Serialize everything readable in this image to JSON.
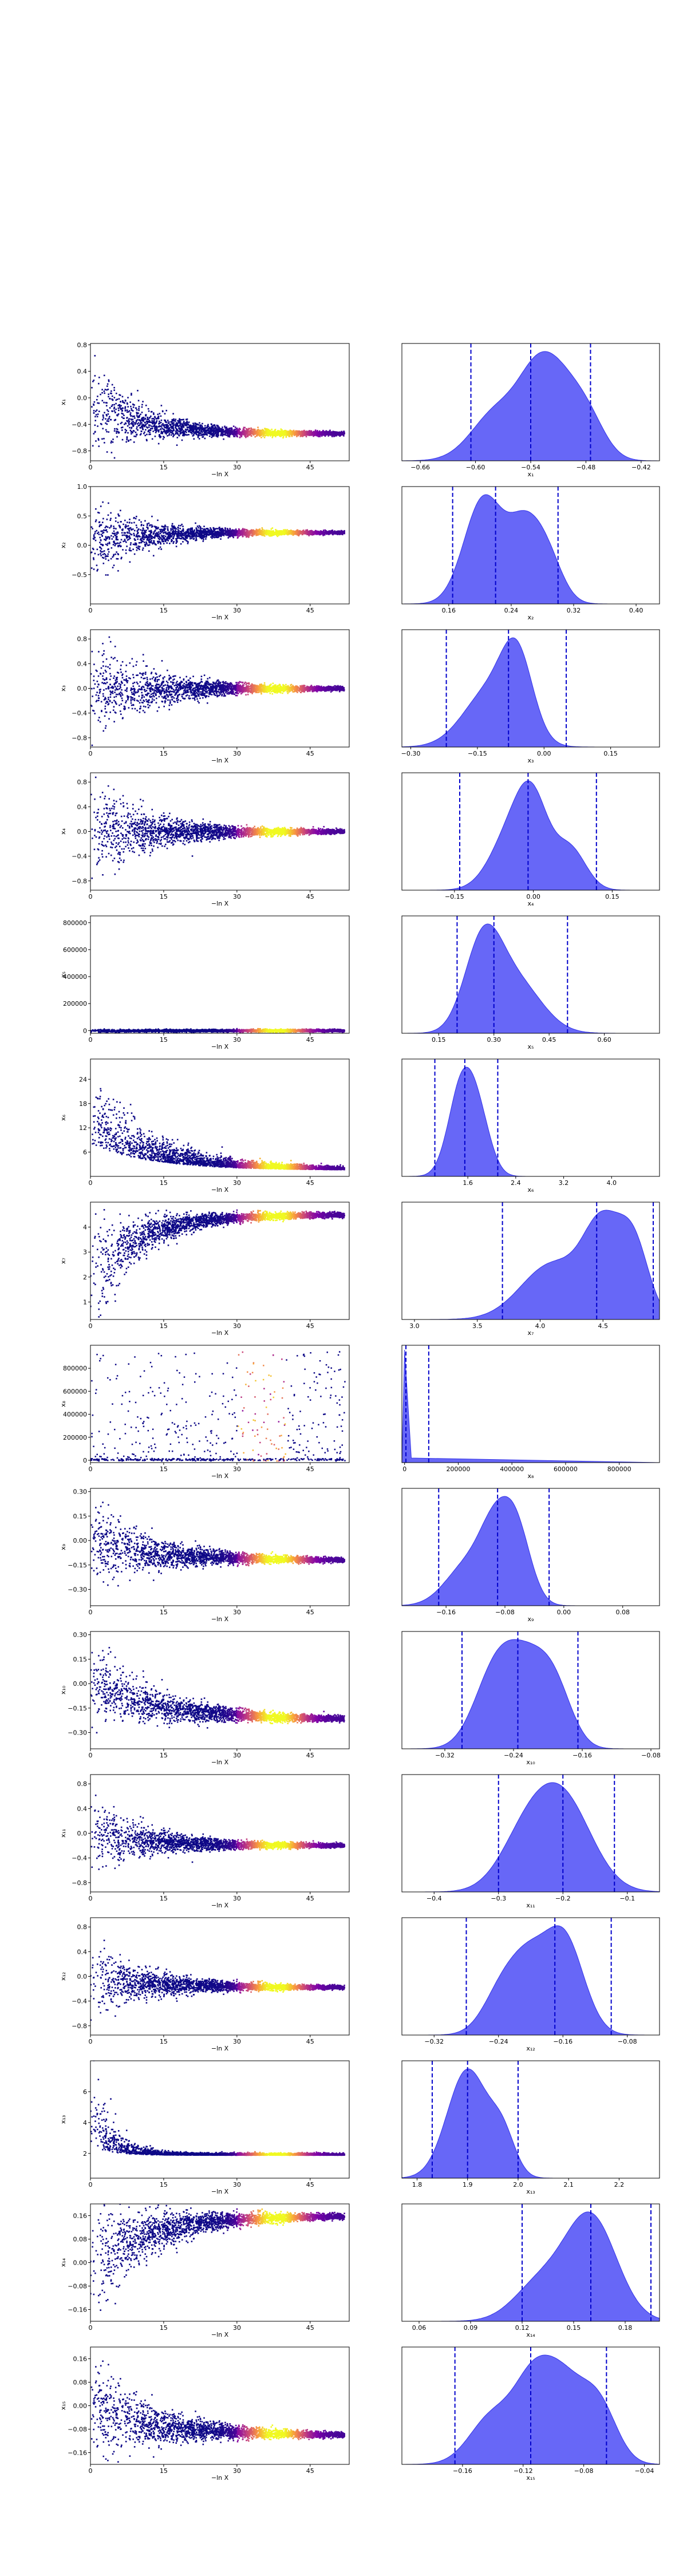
{
  "chart_data": [
    {
      "index": 1,
      "type": "scatter",
      "density_colored": true,
      "xlabel": "−ln X",
      "ylabel": "x₁",
      "xlim": [
        0,
        53
      ],
      "ylim": [
        -0.95,
        0.82
      ],
      "xticks": [
        0,
        15,
        30,
        45
      ],
      "yticks": [
        0.8,
        0.4,
        0.0,
        -0.4,
        -0.8
      ],
      "ytick_labels": [
        "0.8",
        "0.4",
        "0.0",
        "−0.4",
        "−0.8"
      ],
      "trend": {
        "y_end": -0.54,
        "spread0": 0.8,
        "y0": -0.05,
        "decay": 0.1
      }
    },
    {
      "index": 1,
      "type": "area",
      "xlabel": "x₁",
      "xlim": [
        -0.68,
        -0.4
      ],
      "xticks": [
        -0.66,
        -0.6,
        -0.54,
        -0.48,
        -0.42
      ],
      "xtick_labels": [
        "−0.66",
        "−0.60",
        "−0.54",
        "−0.48",
        "−0.42"
      ],
      "quantiles": [
        -0.605,
        -0.54,
        -0.475
      ],
      "peaks": [
        [
          -0.575,
          0.028,
          0.85
        ],
        [
          -0.535,
          0.02,
          1.0
        ],
        [
          -0.51,
          0.02,
          0.95
        ],
        [
          -0.48,
          0.02,
          0.75
        ]
      ]
    },
    {
      "index": 2,
      "type": "scatter",
      "density_colored": true,
      "xlabel": "−ln X",
      "ylabel": "x₂",
      "xlim": [
        0,
        53
      ],
      "ylim": [
        -1.0,
        1.0
      ],
      "xticks": [
        0,
        15,
        30,
        45
      ],
      "yticks": [
        1.0,
        0.5,
        0.0,
        -0.5
      ],
      "ytick_labels": [
        "1.0",
        "0.5",
        "0.0",
        "−0.5"
      ],
      "trend": {
        "y_end": 0.22,
        "spread0": 0.8,
        "y0": 0.05,
        "decay": 0.1
      }
    },
    {
      "index": 2,
      "type": "area",
      "xlabel": "x₂",
      "xlim": [
        0.1,
        0.43
      ],
      "xticks": [
        0.16,
        0.24,
        0.32,
        0.4
      ],
      "xtick_labels": [
        "0.16",
        "0.24",
        "0.32",
        "0.40"
      ],
      "quantiles": [
        0.165,
        0.22,
        0.3
      ],
      "peaks": [
        [
          0.205,
          0.025,
          1.0
        ],
        [
          0.255,
          0.02,
          0.6
        ],
        [
          0.285,
          0.02,
          0.45
        ]
      ]
    },
    {
      "index": 3,
      "type": "scatter",
      "density_colored": true,
      "xlabel": "−ln X",
      "ylabel": "x₃",
      "xlim": [
        0,
        53
      ],
      "ylim": [
        -0.95,
        0.95
      ],
      "xticks": [
        0,
        15,
        30,
        45
      ],
      "yticks": [
        0.8,
        0.4,
        0.0,
        -0.4,
        -0.8
      ],
      "ytick_labels": [
        "0.8",
        "0.4",
        "0.0",
        "−0.4",
        "−0.8"
      ],
      "trend": {
        "y_end": 0.0,
        "spread0": 0.85,
        "y0": -0.05,
        "decay": 0.08
      }
    },
    {
      "index": 3,
      "type": "area",
      "xlabel": "x₃",
      "xlim": [
        -0.32,
        0.26
      ],
      "xticks": [
        -0.3,
        -0.15,
        0.0,
        0.15
      ],
      "xtick_labels": [
        "−0.30",
        "−0.15",
        "0.00",
        "0.15"
      ],
      "quantiles": [
        -0.22,
        -0.08,
        0.05
      ],
      "peaks": [
        [
          -0.12,
          0.06,
          0.8
        ],
        [
          -0.06,
          0.035,
          1.0
        ]
      ]
    },
    {
      "index": 4,
      "type": "scatter",
      "density_colored": true,
      "xlabel": "−ln X",
      "ylabel": "x₄",
      "xlim": [
        0,
        53
      ],
      "ylim": [
        -0.95,
        0.95
      ],
      "xticks": [
        0,
        15,
        30,
        45
      ],
      "yticks": [
        0.8,
        0.4,
        0.0,
        -0.4,
        -0.8
      ],
      "ytick_labels": [
        "0.8",
        "0.4",
        "0.0",
        "−0.4",
        "−0.8"
      ],
      "trend": {
        "y_end": 0.0,
        "spread0": 0.85,
        "y0": 0.0,
        "decay": 0.08
      }
    },
    {
      "index": 4,
      "type": "area",
      "xlabel": "x₄",
      "xlim": [
        -0.25,
        0.24
      ],
      "xticks": [
        -0.15,
        0.0,
        0.15
      ],
      "xtick_labels": [
        "−0.15",
        "0.00",
        "0.15"
      ],
      "quantiles": [
        -0.14,
        -0.01,
        0.12
      ],
      "peaks": [
        [
          -0.04,
          0.04,
          0.85
        ],
        [
          0.0,
          0.03,
          1.0
        ],
        [
          0.07,
          0.03,
          0.6
        ]
      ]
    },
    {
      "index": 5,
      "type": "scatter",
      "density_colored": true,
      "xlabel": "−ln X",
      "ylabel": "x₅",
      "xlim": [
        0,
        53
      ],
      "ylim": [
        -20000,
        850000
      ],
      "xticks": [
        0,
        15,
        30,
        45
      ],
      "yticks": [
        800000,
        600000,
        400000,
        200000,
        0
      ],
      "ytick_labels": [
        "800000",
        "600000",
        "400000",
        "200000",
        "0"
      ],
      "trend": {
        "y_end": 0,
        "spread0": 0,
        "y0": 0,
        "decay": 0.1
      }
    },
    {
      "index": 5,
      "type": "area",
      "xlabel": "x₅",
      "xlim": [
        0.05,
        0.75
      ],
      "xticks": [
        0.15,
        0.3,
        0.45,
        0.6
      ],
      "xtick_labels": [
        "0.15",
        "0.30",
        "0.45",
        "0.60"
      ],
      "quantiles": [
        0.2,
        0.3,
        0.5
      ],
      "peaks": [
        [
          0.27,
          0.05,
          1.0
        ],
        [
          0.36,
          0.07,
          0.6
        ]
      ]
    },
    {
      "index": 6,
      "type": "scatter",
      "density_colored": true,
      "xlabel": "−ln X",
      "ylabel": "x₆",
      "xlim": [
        0,
        53
      ],
      "ylim": [
        0,
        29
      ],
      "xticks": [
        0,
        15,
        30,
        45
      ],
      "yticks": [
        24,
        18,
        12,
        6
      ],
      "ytick_labels": [
        "24",
        "18",
        "12",
        "6"
      ],
      "trend": {
        "y_end": 1.6,
        "spread0": 14,
        "y0": 8,
        "decay": 0.08,
        "positive": true
      }
    },
    {
      "index": 6,
      "type": "area",
      "xlabel": "x₆",
      "xlim": [
        0.5,
        4.8
      ],
      "xticks": [
        1.6,
        2.4,
        3.2,
        4.0
      ],
      "xtick_labels": [
        "1.6",
        "2.4",
        "3.2",
        "4.0"
      ],
      "quantiles": [
        1.05,
        1.55,
        2.1
      ],
      "peaks": [
        [
          1.5,
          0.22,
          1.0
        ],
        [
          1.8,
          0.2,
          0.5
        ]
      ]
    },
    {
      "index": 7,
      "type": "scatter",
      "density_colored": true,
      "xlabel": "−ln X",
      "ylabel": "x₇",
      "xlim": [
        0,
        53
      ],
      "ylim": [
        0.3,
        5.0
      ],
      "xticks": [
        0,
        15,
        30,
        45
      ],
      "yticks": [
        4,
        3,
        2,
        1
      ],
      "ytick_labels": [
        "4",
        "3",
        "2",
        "1"
      ],
      "trend": {
        "y_end": 4.5,
        "spread0": 2.2,
        "y0": 2.0,
        "decay": 0.1,
        "cap": 4.7
      }
    },
    {
      "index": 7,
      "type": "area",
      "xlabel": "x₇",
      "xlim": [
        2.9,
        4.95
      ],
      "xticks": [
        3.0,
        3.5,
        4.0,
        4.5
      ],
      "xtick_labels": [
        "3.0",
        "3.5",
        "4.0",
        "4.5"
      ],
      "quantiles": [
        3.7,
        4.45,
        4.9
      ],
      "peaks": [
        [
          4.1,
          0.25,
          0.65
        ],
        [
          4.5,
          0.15,
          1.0
        ],
        [
          4.75,
          0.12,
          0.8
        ]
      ]
    },
    {
      "index": 8,
      "type": "scatter",
      "density_colored": true,
      "sparse": true,
      "xlabel": "−ln X",
      "ylabel": "x₈",
      "xlim": [
        0,
        53
      ],
      "ylim": [
        -20000,
        1000000
      ],
      "xticks": [
        0,
        15,
        30,
        45
      ],
      "yticks": [
        800000,
        600000,
        400000,
        200000,
        0
      ],
      "ytick_labels": [
        "800000",
        "600000",
        "400000",
        "200000",
        "0"
      ]
    },
    {
      "index": 8,
      "type": "area",
      "xlabel": "x₈",
      "xlim": [
        -10000,
        950000
      ],
      "xticks": [
        0,
        200000,
        400000,
        600000,
        800000
      ],
      "xtick_labels": [
        "0",
        "200000",
        "400000",
        "600000",
        "800000"
      ],
      "quantiles": [
        5000,
        90000
      ],
      "spike": true
    },
    {
      "index": 9,
      "type": "scatter",
      "density_colored": true,
      "xlabel": "−ln X",
      "ylabel": "x₉",
      "xlim": [
        0,
        53
      ],
      "ylim": [
        -0.4,
        0.32
      ],
      "xticks": [
        0,
        15,
        30,
        45
      ],
      "yticks": [
        0.3,
        0.15,
        0.0,
        -0.15,
        -0.3
      ],
      "ytick_labels": [
        "0.30",
        "0.15",
        "0.00",
        "−0.15",
        "−0.30"
      ],
      "trend": {
        "y_end": -0.12,
        "spread0": 0.3,
        "y0": 0.0,
        "decay": 0.08
      }
    },
    {
      "index": 9,
      "type": "area",
      "xlabel": "x₉",
      "xlim": [
        -0.22,
        0.13
      ],
      "xticks": [
        -0.16,
        -0.08,
        0.0,
        0.08
      ],
      "xtick_labels": [
        "−0.16",
        "−0.08",
        "0.00",
        "0.08"
      ],
      "quantiles": [
        -0.17,
        -0.09,
        -0.02
      ],
      "peaks": [
        [
          -0.13,
          0.03,
          0.55
        ],
        [
          -0.095,
          0.02,
          0.75
        ],
        [
          -0.065,
          0.02,
          1.0
        ]
      ]
    },
    {
      "index": 10,
      "type": "scatter",
      "density_colored": true,
      "xlabel": "−ln X",
      "ylabel": "x₁₀",
      "xlim": [
        0,
        53
      ],
      "ylim": [
        -0.4,
        0.32
      ],
      "xticks": [
        0,
        15,
        30,
        45
      ],
      "yticks": [
        0.3,
        0.15,
        0.0,
        -0.15,
        -0.3
      ],
      "ytick_labels": [
        "0.30",
        "0.15",
        "0.00",
        "−0.15",
        "−0.30"
      ],
      "trend": {
        "y_end": -0.22,
        "spread0": 0.25,
        "y0": 0.0,
        "decay": 0.07
      }
    },
    {
      "index": 10,
      "type": "area",
      "xlabel": "x₁₀",
      "xlim": [
        -0.37,
        -0.07
      ],
      "xticks": [
        -0.32,
        -0.24,
        -0.16,
        -0.08
      ],
      "xtick_labels": [
        "−0.32",
        "−0.24",
        "−0.16",
        "−0.08"
      ],
      "quantiles": [
        -0.3,
        -0.235,
        -0.165
      ],
      "peaks": [
        [
          -0.26,
          0.025,
          1.0
        ],
        [
          -0.22,
          0.025,
          0.9
        ],
        [
          -0.19,
          0.02,
          0.55
        ]
      ]
    },
    {
      "index": 11,
      "type": "scatter",
      "density_colored": true,
      "xlabel": "−ln X",
      "ylabel": "x₁₁",
      "xlim": [
        0,
        53
      ],
      "ylim": [
        -0.95,
        0.95
      ],
      "xticks": [
        0,
        15,
        30,
        45
      ],
      "yticks": [
        0.8,
        0.4,
        0.0,
        -0.4,
        -0.8
      ],
      "ytick_labels": [
        "0.8",
        "0.4",
        "0.0",
        "−0.4",
        "−0.8"
      ],
      "trend": {
        "y_end": -0.2,
        "spread0": 0.6,
        "y0": 0.0,
        "decay": 0.08
      }
    },
    {
      "index": 11,
      "type": "area",
      "xlabel": "x₁₁",
      "xlim": [
        -0.45,
        -0.05
      ],
      "xticks": [
        -0.4,
        -0.3,
        -0.2,
        -0.1
      ],
      "xtick_labels": [
        "−0.4",
        "−0.3",
        "−0.2",
        "−0.1"
      ],
      "quantiles": [
        -0.3,
        -0.2,
        -0.12
      ],
      "peaks": [
        [
          -0.2,
          0.045,
          1.0
        ],
        [
          -0.26,
          0.04,
          0.5
        ]
      ]
    },
    {
      "index": 12,
      "type": "scatter",
      "density_colored": true,
      "xlabel": "−ln X",
      "ylabel": "x₁₂",
      "xlim": [
        0,
        53
      ],
      "ylim": [
        -0.95,
        0.95
      ],
      "xticks": [
        0,
        15,
        30,
        45
      ],
      "yticks": [
        0.8,
        0.4,
        0.0,
        -0.4,
        -0.8
      ],
      "ytick_labels": [
        "0.8",
        "0.4",
        "0.0",
        "−0.4",
        "−0.8"
      ],
      "trend": {
        "y_end": -0.18,
        "spread0": 0.6,
        "y0": 0.0,
        "decay": 0.08
      }
    },
    {
      "index": 12,
      "type": "area",
      "xlabel": "x₁₂",
      "xlim": [
        -0.36,
        -0.04
      ],
      "xticks": [
        -0.32,
        -0.24,
        -0.16,
        -0.08
      ],
      "xtick_labels": [
        "−0.32",
        "−0.24",
        "−0.16",
        "−0.08"
      ],
      "quantiles": [
        -0.28,
        -0.17,
        -0.1
      ],
      "peaks": [
        [
          -0.23,
          0.025,
          0.55
        ],
        [
          -0.16,
          0.025,
          1.0
        ],
        [
          -0.2,
          0.02,
          0.4
        ]
      ]
    },
    {
      "index": 13,
      "type": "scatter",
      "density_colored": true,
      "xlabel": "−ln X",
      "ylabel": "x₁₃",
      "xlim": [
        0,
        53
      ],
      "ylim": [
        0.4,
        8.0
      ],
      "xticks": [
        0,
        15,
        30,
        45
      ],
      "yticks": [
        6,
        4,
        2
      ],
      "ytick_labels": [
        "6",
        "4",
        "2"
      ],
      "trend": {
        "y_end": 1.9,
        "spread0": 5,
        "y0": 2.5,
        "decay": 0.25,
        "positive": true
      }
    },
    {
      "index": 13,
      "type": "area",
      "xlabel": "x₁₃",
      "xlim": [
        1.77,
        2.28
      ],
      "xticks": [
        1.8,
        1.9,
        2.0,
        2.1,
        2.2
      ],
      "xtick_labels": [
        "1.8",
        "1.9",
        "2.0",
        "2.1",
        "2.2"
      ],
      "quantiles": [
        1.83,
        1.9,
        2.0
      ],
      "peaks": [
        [
          1.9,
          0.04,
          1.0
        ],
        [
          1.97,
          0.025,
          0.35
        ]
      ]
    },
    {
      "index": 14,
      "type": "scatter",
      "density_colored": true,
      "xlabel": "−ln X",
      "ylabel": "x₁₄",
      "xlim": [
        0,
        53
      ],
      "ylim": [
        -0.2,
        0.2
      ],
      "xticks": [
        0,
        15,
        30,
        45
      ],
      "yticks": [
        0.16,
        0.08,
        0.0,
        -0.08,
        -0.16
      ],
      "ytick_labels": [
        "0.16",
        "0.08",
        "0.00",
        "−0.08",
        "−0.16"
      ],
      "trend": {
        "y_end": 0.16,
        "spread0": 0.2,
        "y0": 0.0,
        "decay": 0.08,
        "cap": 0.2
      }
    },
    {
      "index": 14,
      "type": "area",
      "xlabel": "x₁₄",
      "xlim": [
        0.05,
        0.2
      ],
      "xticks": [
        0.06,
        0.09,
        0.12,
        0.15,
        0.18
      ],
      "xtick_labels": [
        "0.06",
        "0.09",
        "0.12",
        "0.15",
        "0.18"
      ],
      "quantiles": [
        0.12,
        0.16,
        0.195
      ],
      "peaks": [
        [
          0.16,
          0.015,
          1.0
        ],
        [
          0.13,
          0.015,
          0.35
        ]
      ]
    },
    {
      "index": 15,
      "type": "scatter",
      "density_colored": true,
      "xlabel": "−ln X",
      "ylabel": "x₁₅",
      "xlim": [
        0,
        53
      ],
      "ylim": [
        -0.2,
        0.2
      ],
      "xticks": [
        0,
        15,
        30,
        45
      ],
      "yticks": [
        0.16,
        0.08,
        0.0,
        -0.08,
        -0.16
      ],
      "ytick_labels": [
        "0.16",
        "0.08",
        "0.00",
        "−0.08",
        "−0.16"
      ],
      "trend": {
        "y_end": -0.1,
        "spread0": 0.2,
        "y0": 0.0,
        "decay": 0.08
      }
    },
    {
      "index": 15,
      "type": "area",
      "xlabel": "x₁₅",
      "xlim": [
        -0.2,
        -0.03
      ],
      "xticks": [
        -0.16,
        -0.12,
        -0.08,
        -0.04
      ],
      "xtick_labels": [
        "−0.16",
        "−0.12",
        "−0.08",
        "−0.04"
      ],
      "quantiles": [
        -0.165,
        -0.115,
        -0.065
      ],
      "peaks": [
        [
          -0.14,
          0.015,
          0.6
        ],
        [
          -0.115,
          0.012,
          0.75
        ],
        [
          -0.095,
          0.014,
          1.0
        ],
        [
          -0.07,
          0.012,
          0.7
        ]
      ]
    }
  ]
}
